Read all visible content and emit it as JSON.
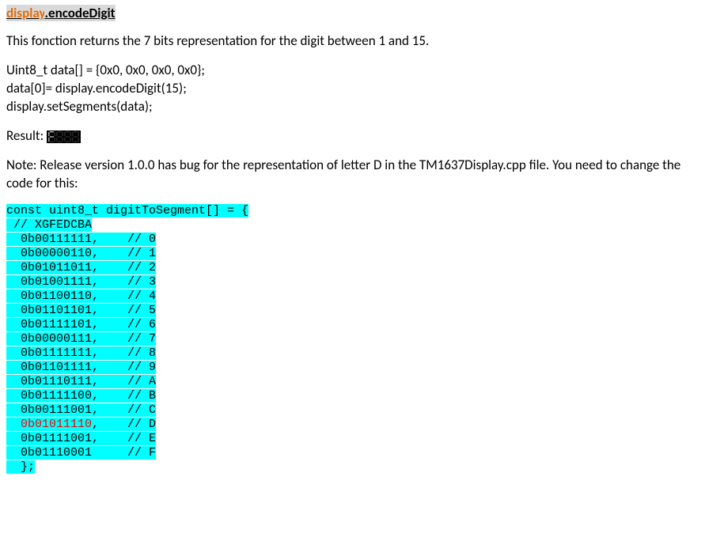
{
  "heading": {
    "part1": "display",
    "part2": ".encodeDigit"
  },
  "intro": "This fonction returns the 7 bits representation for the digit between 1 and 15.",
  "example": {
    "line1": "Uint8_t data[] = {0x0, 0x0, 0x0, 0x0};",
    "line2": "data[0]= display.encodeDigit(15);",
    "line3": "display.setSegments(data);"
  },
  "result_label": "Result:",
  "seg_display": {
    "bg": "#000000",
    "lit": "#c0c0c0",
    "dim": "#303030",
    "chars": [
      "F",
      "blank",
      "blank",
      "blank"
    ]
  },
  "note": "Note: Release version 1.0.0 has bug for the representation of letter D in the TM1637Display.cpp file. You need to change the code for this:",
  "code": {
    "highlight_bg": "#00ffff",
    "red_text": "#ff0000",
    "lines": [
      {
        "text": "const uint8_t digitToSegment[] = {",
        "red": false
      },
      {
        "text": " // XGFEDCBA",
        "red": false
      },
      {
        "text": "  0b00111111,    // 0",
        "red": false
      },
      {
        "text": "  0b00000110,    // 1",
        "red": false
      },
      {
        "text": "  0b01011011,    // 2",
        "red": false
      },
      {
        "text": "  0b01001111,    // 3",
        "red": false
      },
      {
        "text": "  0b01100110,    // 4",
        "red": false
      },
      {
        "text": "  0b01101101,    // 5",
        "red": false
      },
      {
        "text": "  0b01111101,    // 6",
        "red": false
      },
      {
        "text": "  0b00000111,    // 7",
        "red": false
      },
      {
        "text": "  0b01111111,    // 8",
        "red": false
      },
      {
        "text": "  0b01101111,    // 9",
        "red": false
      },
      {
        "text": "  0b01110111,    // A",
        "red": false
      },
      {
        "text": "  0b01111100,    // B",
        "red": false
      },
      {
        "text": "  0b00111001,    // C",
        "red": false
      },
      {
        "text": "  0b01011110",
        "tail": ",    // D",
        "red": true
      },
      {
        "text": "  0b01111001,    // E",
        "red": false
      },
      {
        "text": "  0b01110001     // F",
        "red": false
      },
      {
        "text": "  };",
        "red": false
      }
    ]
  }
}
